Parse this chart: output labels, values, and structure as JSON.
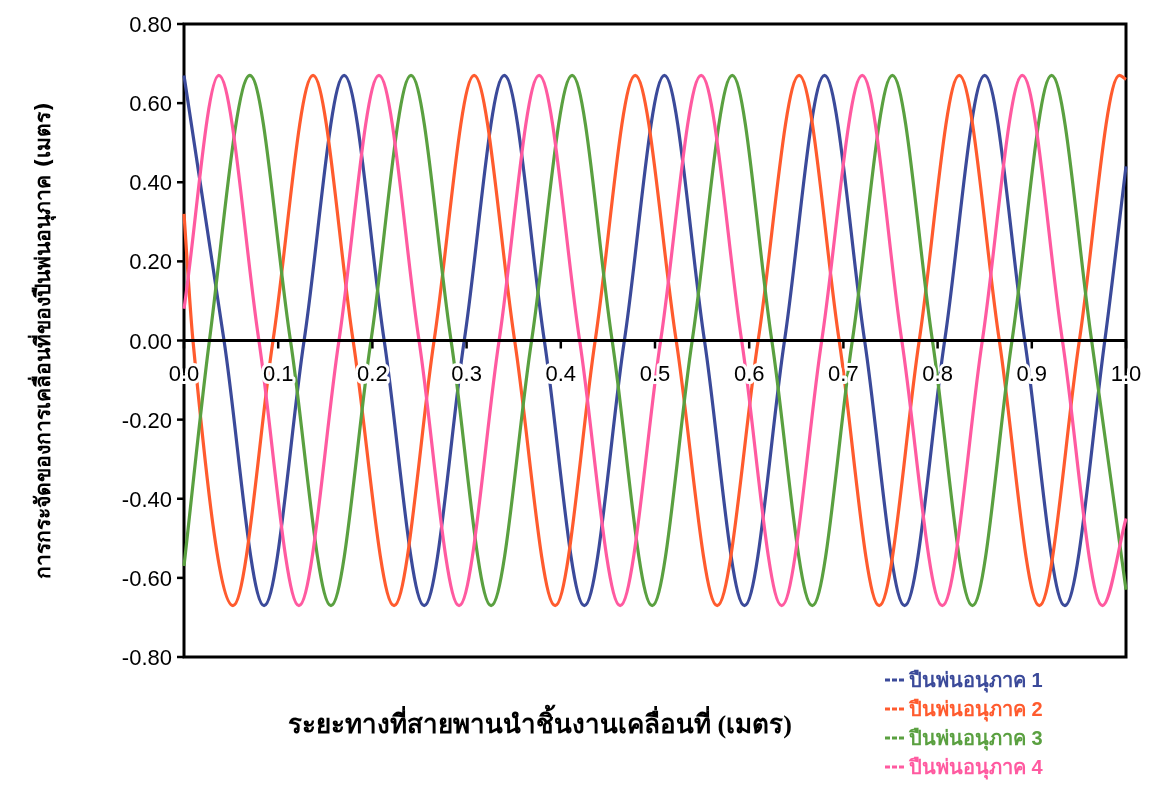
{
  "chart_data": {
    "type": "line",
    "xlabel": "ระยะทางที่สายพานนำชิ้นงานเคลื่อนที่ (เมตร)",
    "ylabel": "การกระจัดของการเคลื่อนที่ของปืนพ่นอนุภาค (เมตร)",
    "xlim": [
      0,
      1
    ],
    "ylim": [
      -0.8,
      0.8
    ],
    "xticks": [
      {
        "value": 0,
        "label": "0.0"
      },
      {
        "value": 0.1,
        "label": "0.1"
      },
      {
        "value": 0.2,
        "label": "0.2"
      },
      {
        "value": 0.3,
        "label": "0.3"
      },
      {
        "value": 0.4,
        "label": "0.4"
      },
      {
        "value": 0.5,
        "label": "0.5"
      },
      {
        "value": 0.6,
        "label": "0.6"
      },
      {
        "value": 0.7,
        "label": "0.7"
      },
      {
        "value": 0.8,
        "label": "0.8"
      },
      {
        "value": 0.9,
        "label": "0.9"
      },
      {
        "value": 1,
        "label": "1.0"
      }
    ],
    "yticks": [
      {
        "value": -0.8,
        "label": "-0.80"
      },
      {
        "value": -0.6,
        "label": "-0.60"
      },
      {
        "value": -0.4,
        "label": "-0.40"
      },
      {
        "value": -0.2,
        "label": "-0.20"
      },
      {
        "value": 0,
        "label": "0.00"
      },
      {
        "value": 0.2,
        "label": "0.20"
      },
      {
        "value": 0.4,
        "label": "0.40"
      },
      {
        "value": 0.6,
        "label": "0.60"
      },
      {
        "value": 0.8,
        "label": "0.80"
      }
    ],
    "grid": false,
    "legend": "bottom right",
    "marker": "none",
    "line_style": "solid",
    "series": [
      {
        "name": "ปืนพ่นอนุภาค 1",
        "color": "#3b4a9a",
        "x": [
          0,
          0.0425,
          0.085,
          0.1275,
          0.17,
          0.2125,
          0.255,
          0.2975,
          0.34,
          0.3825,
          0.425,
          0.4675,
          0.51,
          0.5525,
          0.595,
          0.6375,
          0.68,
          0.7225,
          0.765,
          0.8075,
          0.85,
          0.8925,
          0.935,
          0.9775,
          1.0
        ],
        "values": [
          0.67,
          0,
          -0.67,
          0,
          0.67,
          0,
          -0.67,
          0,
          0.67,
          0,
          -0.67,
          0,
          0.67,
          0,
          -0.67,
          0,
          0.67,
          0,
          -0.67,
          0,
          0.67,
          0,
          -0.67,
          0,
          0.44
        ]
      },
      {
        "name": "ปืนพ่นอนุภาค 2",
        "color": "#ff5b2e",
        "x": [
          0,
          0.0095,
          0.052,
          0.0945,
          0.137,
          0.1795,
          0.223,
          0.2655,
          0.308,
          0.351,
          0.394,
          0.4365,
          0.479,
          0.5225,
          0.566,
          0.6095,
          0.653,
          0.6955,
          0.738,
          0.7805,
          0.823,
          0.8655,
          0.908,
          0.9505,
          0.993,
          1.0
        ],
        "values": [
          0.32,
          0,
          -0.67,
          0,
          0.67,
          0,
          -0.67,
          0,
          0.67,
          0,
          -0.67,
          0,
          0.67,
          0,
          -0.67,
          0,
          0.67,
          0,
          -0.67,
          0,
          0.67,
          0,
          -0.67,
          0,
          0.67,
          0.66
        ]
      },
      {
        "name": "ปืนพ่นอนุภาค 3",
        "color": "#5aa040",
        "x": [
          0,
          0.027,
          0.07,
          0.113,
          0.156,
          0.1985,
          0.241,
          0.2835,
          0.326,
          0.369,
          0.412,
          0.4545,
          0.497,
          0.5395,
          0.582,
          0.624,
          0.667,
          0.7095,
          0.752,
          0.7945,
          0.837,
          0.879,
          0.921,
          0.9635,
          1.0
        ],
        "values": [
          -0.57,
          0,
          0.67,
          0,
          -0.67,
          0,
          0.67,
          0,
          -0.67,
          0,
          0.67,
          0,
          -0.67,
          0,
          0.67,
          0,
          -0.67,
          0,
          0.67,
          0,
          -0.67,
          0,
          0.67,
          0,
          -0.63
        ]
      },
      {
        "name": "ปืนพ่นอนุภาค 4",
        "color": "#ff5aa0",
        "x": [
          0,
          0.037,
          0.0795,
          0.122,
          0.1645,
          0.207,
          0.2495,
          0.292,
          0.3345,
          0.377,
          0.42,
          0.463,
          0.506,
          0.549,
          0.592,
          0.6345,
          0.677,
          0.72,
          0.762,
          0.805,
          0.8475,
          0.89,
          0.9325,
          0.975,
          1.0
        ],
        "values": [
          0.08,
          0.67,
          0,
          -0.67,
          0,
          0.67,
          0,
          -0.67,
          0,
          0.67,
          0,
          -0.67,
          0,
          0.67,
          0,
          -0.67,
          0,
          0.67,
          0,
          -0.67,
          0,
          0.67,
          0,
          -0.67,
          -0.45
        ]
      }
    ]
  }
}
